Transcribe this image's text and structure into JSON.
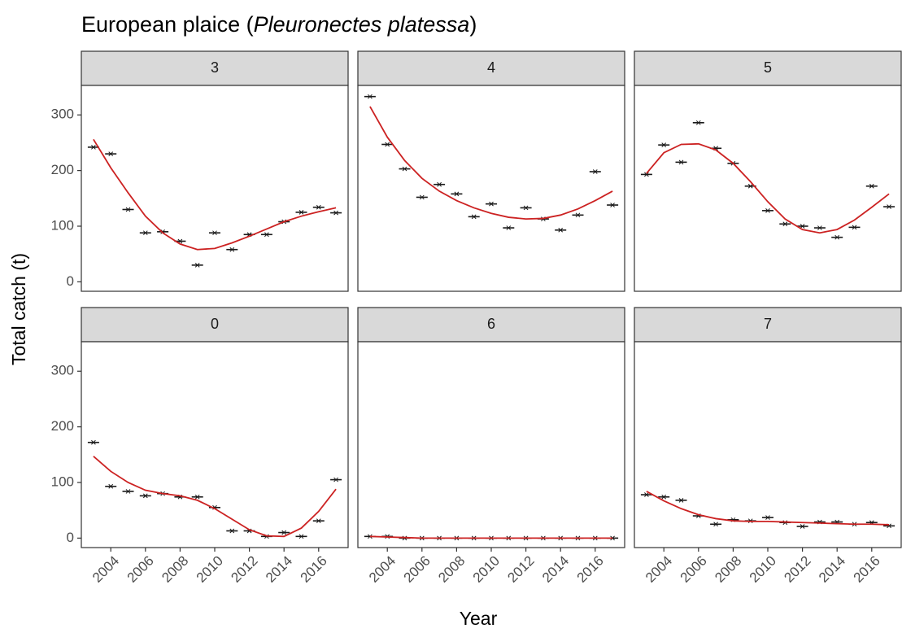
{
  "chart_data": {
    "type": "scatter",
    "title": [
      "European plaice (",
      "Pleuronectes platessa",
      ")"
    ],
    "x_label": "Year",
    "y_label": "Total catch (t)",
    "x": [
      2003,
      2004,
      2005,
      2006,
      2007,
      2008,
      2009,
      2010,
      2011,
      2012,
      2013,
      2014,
      2015,
      2016,
      2017
    ],
    "xlim": [
      2002.3,
      2017.7
    ],
    "ylim": [
      -17,
      353
    ],
    "xticks": [
      2004,
      2006,
      2008,
      2010,
      2012,
      2014,
      2016
    ],
    "yticks": [
      0,
      100,
      200,
      300
    ],
    "grid": false,
    "facets": [
      {
        "label": "3",
        "series": [
          {
            "mark": "cross",
            "color": "#1a1a1a",
            "values": [
              242,
              230,
              130,
              88,
              90,
              73,
              30,
              88,
              58,
              85,
              85,
              108,
              125,
              134,
              124
            ]
          },
          {
            "mark": "line",
            "color": "#cc2222",
            "values": [
              256,
              205,
              160,
              118,
              88,
              68,
              58,
              60,
              70,
              82,
              95,
              108,
              118,
              126,
              133
            ]
          }
        ]
      },
      {
        "label": "4",
        "series": [
          {
            "mark": "cross",
            "color": "#1a1a1a",
            "values": [
              333,
              247,
              203,
              152,
              175,
              158,
              117,
              140,
              97,
              133,
              113,
              93,
              120,
              198,
              138
            ]
          },
          {
            "mark": "line",
            "color": "#cc2222",
            "values": [
              315,
              260,
              218,
              186,
              163,
              146,
              133,
              123,
              116,
              113,
              114,
              120,
              131,
              146,
              163
            ]
          }
        ]
      },
      {
        "label": "5",
        "series": [
          {
            "mark": "cross",
            "color": "#1a1a1a",
            "values": [
              193,
              246,
              215,
              286,
              240,
              213,
              172,
              128,
              104,
              100,
              97,
              80,
              98,
              172,
              135
            ]
          },
          {
            "mark": "line",
            "color": "#cc2222",
            "values": [
              195,
              232,
              247,
              248,
              237,
              213,
              180,
              144,
              113,
              94,
              88,
              94,
              111,
              134,
              158
            ]
          }
        ]
      },
      {
        "label": "0",
        "series": [
          {
            "mark": "cross",
            "color": "#1a1a1a",
            "values": [
              172,
              93,
              84,
              76,
              80,
              74,
              74,
              55,
              13,
              13,
              3,
              10,
              3,
              31,
              105
            ]
          },
          {
            "mark": "line",
            "color": "#cc2222",
            "values": [
              147,
              120,
              100,
              86,
              80,
              76,
              68,
              53,
              34,
              15,
              4,
              3,
              18,
              48,
              88
            ]
          }
        ]
      },
      {
        "label": "6",
        "series": [
          {
            "mark": "cross",
            "color": "#1a1a1a",
            "values": [
              3,
              3,
              0,
              0,
              0,
              0,
              0,
              0,
              0,
              0,
              0,
              0,
              0,
              0,
              0
            ]
          },
          {
            "mark": "line",
            "color": "#cc2222",
            "values": [
              3,
              2,
              1,
              0,
              0,
              0,
              0,
              0,
              0,
              0,
              0,
              0,
              0,
              0,
              0
            ]
          }
        ]
      },
      {
        "label": "7",
        "series": [
          {
            "mark": "cross",
            "color": "#1a1a1a",
            "values": [
              78,
              74,
              68,
              40,
              25,
              33,
              31,
              37,
              28,
              21,
              29,
              29,
              25,
              28,
              22
            ]
          },
          {
            "mark": "line",
            "color": "#cc2222",
            "values": [
              84,
              67,
              53,
              42,
              35,
              31,
              30,
              30,
              29,
              28,
              27,
              26,
              25,
              25,
              24
            ]
          }
        ]
      }
    ]
  }
}
